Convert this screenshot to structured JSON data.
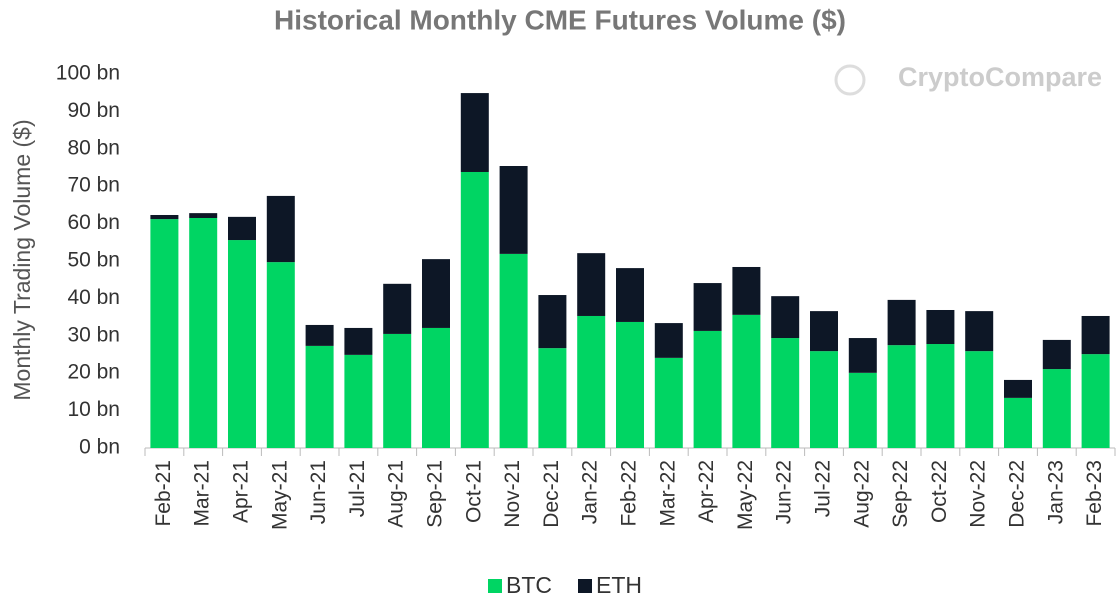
{
  "chart_data": {
    "type": "stacked_bar",
    "title": "Historical Monthly CME Futures Volume ($)",
    "y_label": "Monthly Trading Volume ($)",
    "watermark": "CryptoCompare",
    "categories": [
      "Feb-21",
      "Mar-21",
      "Apr-21",
      "May-21",
      "Jun-21",
      "Jul-21",
      "Aug-21",
      "Sep-21",
      "Oct-21",
      "Nov-21",
      "Dec-21",
      "Jan-22",
      "Feb-22",
      "Mar-22",
      "Apr-22",
      "May-22",
      "Jun-22",
      "Jul-22",
      "Aug-22",
      "Sep-22",
      "Oct-22",
      "Nov-22",
      "Dec-22",
      "Jan-23",
      "Feb-23"
    ],
    "series": [
      {
        "name": "BTC",
        "color": "#00d563",
        "values": [
          61.2,
          61.5,
          55.6,
          49.7,
          27.3,
          24.9,
          30.5,
          32.1,
          73.8,
          51.9,
          26.7,
          35.3,
          33.7,
          24.1,
          31.3,
          35.6,
          29.4,
          25.9,
          20.1,
          27.5,
          27.8,
          25.9,
          13.4,
          21.1,
          25.1
        ]
      },
      {
        "name": "ETH",
        "color": "#0d1726",
        "values": [
          1.1,
          1.3,
          6.2,
          17.7,
          5.6,
          7.2,
          13.4,
          18.4,
          21.1,
          23.5,
          14.2,
          16.8,
          14.4,
          9.3,
          12.8,
          12.8,
          11.2,
          10.7,
          9.3,
          12.1,
          9.1,
          10.7,
          4.8,
          7.8,
          10.2
        ]
      }
    ],
    "ylim": [
      0,
      100
    ],
    "yticks": [
      {
        "value": 0,
        "label": "0 bn"
      },
      {
        "value": 10,
        "label": "10 bn"
      },
      {
        "value": 20,
        "label": "20 bn"
      },
      {
        "value": 30,
        "label": "30 bn"
      },
      {
        "value": 40,
        "label": "40 bn"
      },
      {
        "value": 50,
        "label": "50 bn"
      },
      {
        "value": 60,
        "label": "60 bn"
      },
      {
        "value": 70,
        "label": "70 bn"
      },
      {
        "value": 80,
        "label": "80 bn"
      },
      {
        "value": 90,
        "label": "90 bn"
      },
      {
        "value": 100,
        "label": "100 bn"
      }
    ],
    "grid": false,
    "legend": "bottom"
  }
}
